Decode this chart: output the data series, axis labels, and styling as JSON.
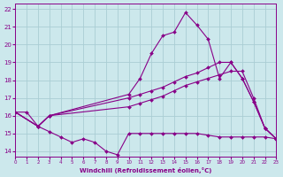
{
  "xlabel": "Windchill (Refroidissement éolien,°C)",
  "bg_color": "#cce8ec",
  "grid_color": "#aacdd4",
  "line_color": "#880088",
  "xlim": [
    0,
    23
  ],
  "ylim": [
    13.7,
    22.3
  ],
  "yticks": [
    14,
    15,
    16,
    17,
    18,
    19,
    20,
    21,
    22
  ],
  "xticks": [
    0,
    1,
    2,
    3,
    4,
    5,
    6,
    7,
    8,
    9,
    10,
    11,
    12,
    13,
    14,
    15,
    16,
    17,
    18,
    19,
    20,
    21,
    22,
    23
  ],
  "series": [
    {
      "x": [
        0,
        1,
        2,
        3,
        4,
        5,
        6,
        7,
        8,
        9,
        10,
        11,
        12,
        13,
        14,
        15,
        16,
        17,
        18,
        19,
        20,
        21,
        22,
        23
      ],
      "y": [
        16.2,
        16.2,
        15.4,
        15.1,
        14.8,
        14.5,
        14.7,
        14.5,
        14.0,
        13.8,
        15.0,
        15.0,
        15.0,
        15.0,
        15.0,
        15.0,
        15.0,
        14.9,
        14.8,
        14.8,
        14.8,
        14.8,
        14.8,
        14.7
      ]
    },
    {
      "x": [
        0,
        2,
        3,
        10,
        11,
        12,
        13,
        14,
        15,
        16,
        17,
        18,
        19,
        20,
        21,
        22,
        23
      ],
      "y": [
        16.2,
        15.4,
        16.0,
        16.5,
        16.7,
        16.9,
        17.1,
        17.4,
        17.7,
        17.9,
        18.1,
        18.3,
        18.5,
        18.5,
        17.0,
        15.3,
        14.7
      ]
    },
    {
      "x": [
        0,
        2,
        3,
        10,
        11,
        12,
        13,
        14,
        15,
        16,
        17,
        18,
        19,
        20,
        21,
        22,
        23
      ],
      "y": [
        16.2,
        15.4,
        16.0,
        17.0,
        17.2,
        17.4,
        17.6,
        17.9,
        18.2,
        18.4,
        18.7,
        19.0,
        19.0,
        18.1,
        16.8,
        15.3,
        14.7
      ]
    },
    {
      "x": [
        0,
        2,
        3,
        10,
        11,
        12,
        13,
        14,
        15,
        16,
        17,
        18,
        19,
        20,
        21,
        22,
        23
      ],
      "y": [
        16.2,
        15.4,
        16.0,
        17.2,
        18.1,
        19.5,
        20.5,
        20.7,
        21.8,
        21.1,
        20.3,
        18.1,
        19.0,
        18.1,
        16.8,
        15.3,
        14.7
      ]
    }
  ]
}
